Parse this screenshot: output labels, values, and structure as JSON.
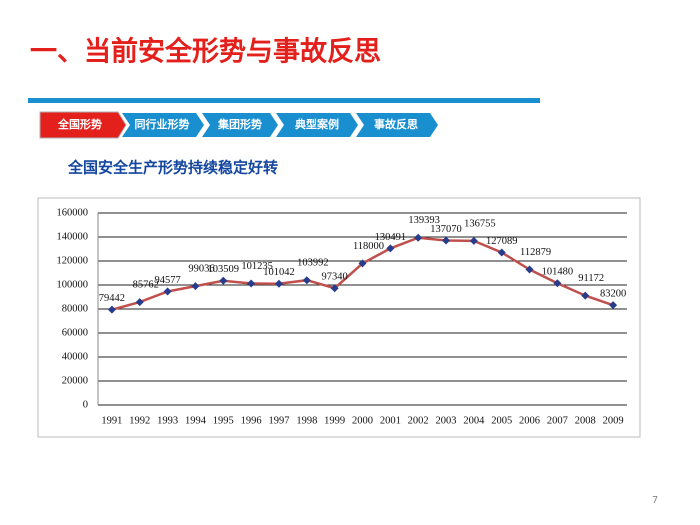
{
  "header": {
    "title": "一、当前安全形势与事故反思"
  },
  "tabs": [
    "全国形势",
    "同行业形势",
    "集团形势",
    "典型案例",
    "事故反思"
  ],
  "subtitle": "全国安全生产形势持续稳定好转",
  "page_number": "7",
  "chart_data": {
    "type": "line",
    "categories": [
      "1991",
      "1992",
      "1993",
      "1994",
      "1995",
      "1996",
      "1997",
      "1998",
      "1999",
      "2000",
      "2001",
      "2002",
      "2003",
      "2004",
      "2005",
      "2006",
      "2007",
      "2008",
      "2009"
    ],
    "values": [
      79442,
      85762,
      94577,
      99036,
      103509,
      101235,
      101042,
      103992,
      97340,
      118000,
      130491,
      139393,
      137070,
      136755,
      127089,
      112879,
      101480,
      91172,
      83200
    ],
    "color": "#c0504d",
    "marker_color": "#283c8c",
    "ylim": [
      0,
      160000
    ],
    "yticks": [
      0,
      20000,
      40000,
      60000,
      80000,
      100000,
      120000,
      140000,
      160000
    ],
    "grid": true
  }
}
